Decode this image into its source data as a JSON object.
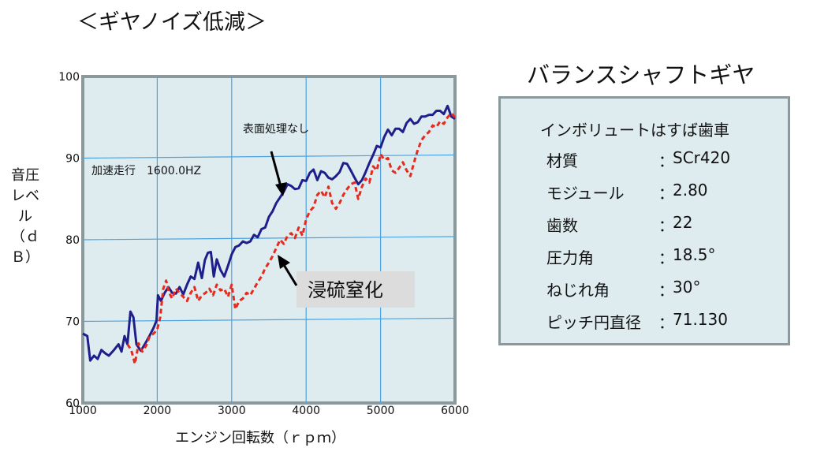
{
  "page_title": "＜ギヤノイズ低減＞",
  "spec": {
    "title": "バランスシャフトギヤ",
    "heading": "インボリュートはすば歯車",
    "rows": [
      {
        "label": "材質",
        "value": "SCr420"
      },
      {
        "label": "モジュール",
        "value": "2.80"
      },
      {
        "label": "歯数",
        "value": "22"
      },
      {
        "label": "圧力角",
        "value": "18.5°"
      },
      {
        "label": "ねじれ角",
        "value": "30°"
      },
      {
        "label": "ピッチ円直径",
        "value": "71.130"
      }
    ],
    "colon": "："
  },
  "chart_data": {
    "type": "line",
    "ylabel": "音圧レベル（ｄＢ）",
    "xlabel": "エンジン回転数（ｒｐｍ）",
    "xlim": [
      1000,
      6000
    ],
    "ylim": [
      60,
      100
    ],
    "xticks": [
      1000,
      2000,
      3000,
      4000,
      5000,
      6000
    ],
    "yticks": [
      60,
      70,
      80,
      90,
      100
    ],
    "condition_label": "加速走行　1600.0HZ",
    "annotations": [
      {
        "text": "表面処理なし"
      },
      {
        "text": "浸硫窒化"
      }
    ],
    "grid": true,
    "background_color": "#dfecef",
    "series": [
      {
        "color": "#1f1f8c",
        "style": "solid",
        "points": [
          [
            1000,
            68.5
          ],
          [
            1060,
            68.2
          ],
          [
            1100,
            65.2
          ],
          [
            1150,
            65.8
          ],
          [
            1200,
            65.4
          ],
          [
            1250,
            66.5
          ],
          [
            1300,
            66.1
          ],
          [
            1350,
            65.8
          ],
          [
            1420,
            66.5
          ],
          [
            1480,
            67.2
          ],
          [
            1520,
            66.3
          ],
          [
            1560,
            68.2
          ],
          [
            1600,
            67.2
          ],
          [
            1640,
            71.2
          ],
          [
            1680,
            70.5
          ],
          [
            1720,
            67.2
          ],
          [
            1780,
            66.4
          ],
          [
            1840,
            67.3
          ],
          [
            1900,
            68.3
          ],
          [
            1950,
            69.2
          ],
          [
            1990,
            70.1
          ],
          [
            2010,
            73.2
          ],
          [
            2050,
            72.5
          ],
          [
            2100,
            73.5
          ],
          [
            2150,
            74.2
          ],
          [
            2200,
            73.5
          ],
          [
            2250,
            73.4
          ],
          [
            2300,
            74.2
          ],
          [
            2350,
            73.3
          ],
          [
            2400,
            74.5
          ],
          [
            2450,
            75.5
          ],
          [
            2500,
            75.2
          ],
          [
            2550,
            77.2
          ],
          [
            2600,
            75.3
          ],
          [
            2640,
            77.5
          ],
          [
            2680,
            78.4
          ],
          [
            2720,
            78.5
          ],
          [
            2760,
            75.5
          ],
          [
            2800,
            77.6
          ],
          [
            2850,
            76.3
          ],
          [
            2900,
            75.5
          ],
          [
            2950,
            76.8
          ],
          [
            3000,
            78.2
          ],
          [
            3050,
            79.1
          ],
          [
            3100,
            79.3
          ],
          [
            3150,
            79.8
          ],
          [
            3200,
            79.6
          ],
          [
            3250,
            79.8
          ],
          [
            3300,
            80.6
          ],
          [
            3350,
            80.3
          ],
          [
            3400,
            81.3
          ],
          [
            3450,
            81.5
          ],
          [
            3500,
            82.8
          ],
          [
            3550,
            83.5
          ],
          [
            3600,
            84.5
          ],
          [
            3650,
            85.2
          ],
          [
            3700,
            85.9
          ],
          [
            3750,
            86.8
          ],
          [
            3800,
            86.6
          ],
          [
            3850,
            86.2
          ],
          [
            3900,
            86.3
          ],
          [
            3950,
            87.3
          ],
          [
            4000,
            87.2
          ],
          [
            4050,
            88.2
          ],
          [
            4100,
            88.6
          ],
          [
            4150,
            87.3
          ],
          [
            4200,
            88.4
          ],
          [
            4250,
            88.2
          ],
          [
            4300,
            87.6
          ],
          [
            4350,
            87.4
          ],
          [
            4400,
            87.8
          ],
          [
            4450,
            88.3
          ],
          [
            4500,
            89.4
          ],
          [
            4550,
            89.3
          ],
          [
            4600,
            88.5
          ],
          [
            4650,
            87.6
          ],
          [
            4700,
            86.8
          ],
          [
            4750,
            87.3
          ],
          [
            4800,
            88.3
          ],
          [
            4850,
            89.4
          ],
          [
            4900,
            90.4
          ],
          [
            4950,
            91.5
          ],
          [
            5000,
            91.3
          ],
          [
            5050,
            92.6
          ],
          [
            5100,
            93.5
          ],
          [
            5150,
            92.8
          ],
          [
            5200,
            93.6
          ],
          [
            5250,
            93.6
          ],
          [
            5300,
            93.2
          ],
          [
            5350,
            94.3
          ],
          [
            5400,
            94.8
          ],
          [
            5450,
            94.2
          ],
          [
            5500,
            94.4
          ],
          [
            5550,
            95.1
          ],
          [
            5600,
            95.1
          ],
          [
            5650,
            95.3
          ],
          [
            5700,
            95.3
          ],
          [
            5750,
            95.8
          ],
          [
            5800,
            95.8
          ],
          [
            5850,
            95.4
          ],
          [
            5900,
            96.4
          ],
          [
            5950,
            95.1
          ],
          [
            6000,
            94.8
          ]
        ]
      },
      {
        "color": "#e62a1e",
        "style": "dashed",
        "points": [
          [
            1600,
            67.2
          ],
          [
            1650,
            66.5
          ],
          [
            1700,
            64.8
          ],
          [
            1750,
            67.3
          ],
          [
            1800,
            66.3
          ],
          [
            1850,
            67.0
          ],
          [
            1900,
            68.2
          ],
          [
            1950,
            68.5
          ],
          [
            2000,
            69.0
          ],
          [
            2040,
            70.5
          ],
          [
            2080,
            74.0
          ],
          [
            2120,
            75.0
          ],
          [
            2160,
            73.5
          ],
          [
            2200,
            72.8
          ],
          [
            2250,
            74.0
          ],
          [
            2300,
            73.5
          ],
          [
            2350,
            73.0
          ],
          [
            2400,
            72.5
          ],
          [
            2450,
            73.5
          ],
          [
            2500,
            74.2
          ],
          [
            2550,
            72.5
          ],
          [
            2600,
            73.2
          ],
          [
            2650,
            73.5
          ],
          [
            2700,
            74.0
          ],
          [
            2750,
            73.2
          ],
          [
            2800,
            74.5
          ],
          [
            2850,
            73.8
          ],
          [
            2900,
            74.0
          ],
          [
            2950,
            73.0
          ],
          [
            3000,
            74.5
          ],
          [
            3050,
            71.5
          ],
          [
            3100,
            72.5
          ],
          [
            3150,
            72.8
          ],
          [
            3200,
            73.5
          ],
          [
            3250,
            73.2
          ],
          [
            3300,
            74.0
          ],
          [
            3350,
            74.8
          ],
          [
            3400,
            75.5
          ],
          [
            3450,
            76.5
          ],
          [
            3500,
            77.2
          ],
          [
            3550,
            78.0
          ],
          [
            3600,
            79.0
          ],
          [
            3650,
            80.0
          ],
          [
            3700,
            79.5
          ],
          [
            3750,
            80.5
          ],
          [
            3800,
            80.8
          ],
          [
            3850,
            80.2
          ],
          [
            3900,
            81.5
          ],
          [
            3950,
            80.5
          ],
          [
            4000,
            82.5
          ],
          [
            4050,
            83.5
          ],
          [
            4100,
            84.0
          ],
          [
            4150,
            85.5
          ],
          [
            4200,
            86.0
          ],
          [
            4250,
            85.2
          ],
          [
            4300,
            86.5
          ],
          [
            4350,
            84.5
          ],
          [
            4400,
            83.8
          ],
          [
            4450,
            84.5
          ],
          [
            4500,
            85.5
          ],
          [
            4550,
            86.2
          ],
          [
            4600,
            86.8
          ],
          [
            4650,
            87.0
          ],
          [
            4700,
            85.0
          ],
          [
            4750,
            86.5
          ],
          [
            4800,
            87.5
          ],
          [
            4850,
            87.0
          ],
          [
            4900,
            89.0
          ],
          [
            4950,
            88.5
          ],
          [
            5000,
            90.5
          ],
          [
            5050,
            89.8
          ],
          [
            5100,
            90.0
          ],
          [
            5150,
            88.5
          ],
          [
            5200,
            88.2
          ],
          [
            5250,
            88.8
          ],
          [
            5300,
            89.5
          ],
          [
            5350,
            88.5
          ],
          [
            5400,
            87.8
          ],
          [
            5450,
            89.5
          ],
          [
            5500,
            91.0
          ],
          [
            5550,
            92.2
          ],
          [
            5600,
            92.8
          ],
          [
            5650,
            93.2
          ],
          [
            5700,
            94.0
          ],
          [
            5750,
            93.8
          ],
          [
            5800,
            94.5
          ],
          [
            5850,
            94.2
          ],
          [
            5900,
            95.0
          ],
          [
            5950,
            95.5
          ],
          [
            6000,
            95.0
          ]
        ]
      }
    ]
  }
}
